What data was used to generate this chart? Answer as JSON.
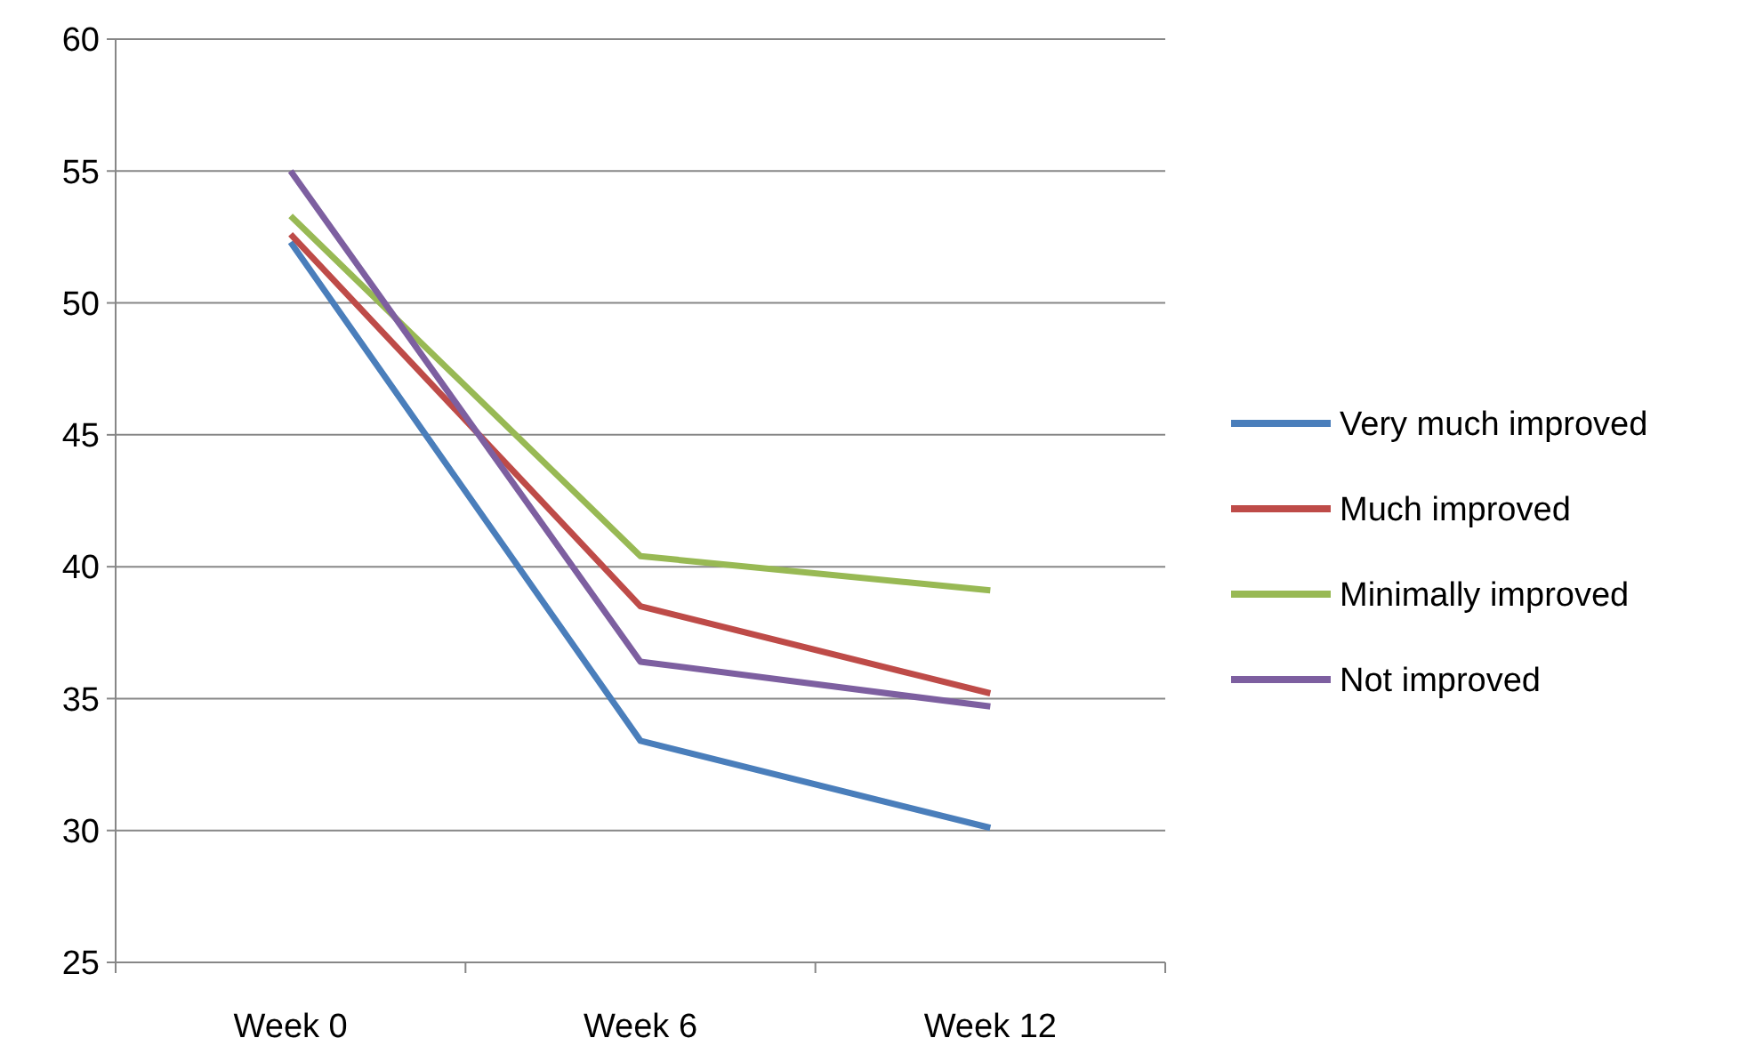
{
  "chart_data": {
    "type": "line",
    "categories": [
      "Week 0",
      "Week 6",
      "Week 12"
    ],
    "series": [
      {
        "name": "Very much improved",
        "color": "#4a7ebb",
        "values": [
          52.3,
          33.4,
          30.1
        ]
      },
      {
        "name": "Much improved",
        "color": "#be4b48",
        "values": [
          52.6,
          38.5,
          35.2
        ]
      },
      {
        "name": "Minimally improved",
        "color": "#98b954",
        "values": [
          53.3,
          40.4,
          39.1
        ]
      },
      {
        "name": "Not improved",
        "color": "#7d5fa0",
        "values": [
          55,
          36.4,
          34.7
        ]
      }
    ],
    "ylim": [
      25,
      60
    ],
    "yticks": [
      25,
      30,
      35,
      40,
      45,
      50,
      55,
      60
    ],
    "grid": "y",
    "legend": "right",
    "marker": "none",
    "line_style": "solid"
  }
}
